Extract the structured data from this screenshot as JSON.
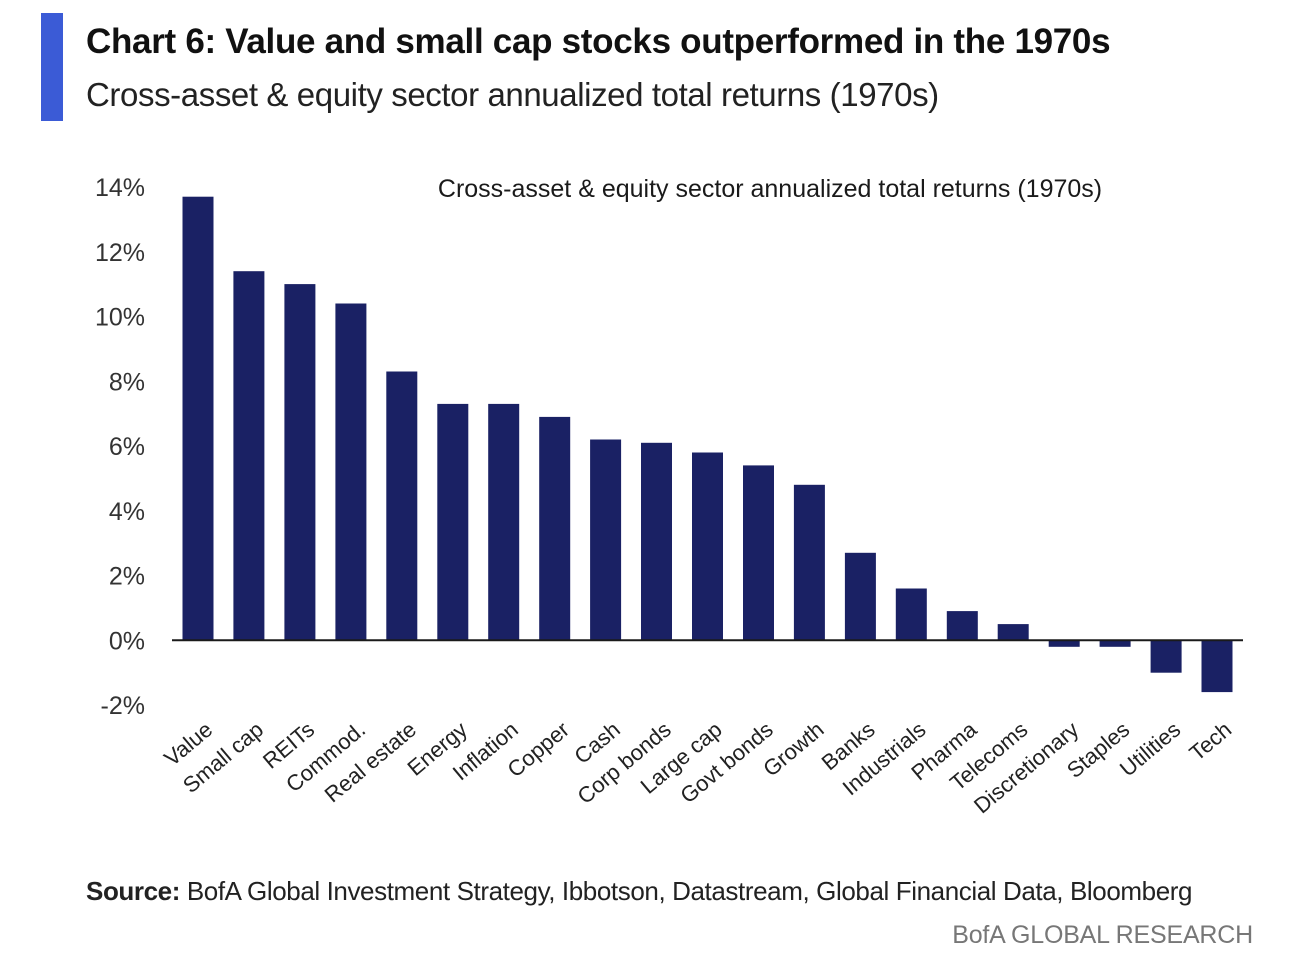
{
  "header": {
    "title": "Chart 6: Value and small cap stocks outperformed in the 1970s",
    "subtitle": "Cross-asset & equity sector annualized total returns (1970s)"
  },
  "footer": {
    "source_label": "Source:",
    "source_text": " BofA Global Investment Strategy, Ibbotson, Datastream, Global Financial Data, Bloomberg",
    "brand": "BofA GLOBAL RESEARCH"
  },
  "colors": {
    "accent": "#3b5bd6",
    "bar": "#1a2164",
    "axis": "#1a1a1a"
  },
  "chart_data": {
    "type": "bar",
    "title": "Cross-asset & equity sector annualized total returns (1970s)",
    "xlabel": "",
    "ylabel": "",
    "ylim": [
      -2,
      14
    ],
    "yticks": [
      14,
      12,
      10,
      8,
      6,
      4,
      2,
      0,
      -2
    ],
    "ytick_labels": [
      "14%",
      "12%",
      "10%",
      "8%",
      "6%",
      "4%",
      "2%",
      "0%",
      "-2%"
    ],
    "grid": false,
    "categories": [
      "Value",
      "Small cap",
      "REITs",
      "Commod.",
      "Real estate",
      "Energy",
      "Inflation",
      "Copper",
      "Cash",
      "Corp bonds",
      "Large cap",
      "Govt bonds",
      "Growth",
      "Banks",
      "Industrials",
      "Pharma",
      "Telecoms",
      "Discretionary",
      "Staples",
      "Utilities",
      "Tech"
    ],
    "values": [
      13.7,
      11.4,
      11.0,
      10.4,
      8.3,
      7.3,
      7.3,
      6.9,
      6.2,
      6.1,
      5.8,
      5.4,
      4.8,
      2.7,
      1.6,
      0.9,
      0.5,
      -0.2,
      -0.2,
      -1.0,
      -1.6
    ]
  }
}
